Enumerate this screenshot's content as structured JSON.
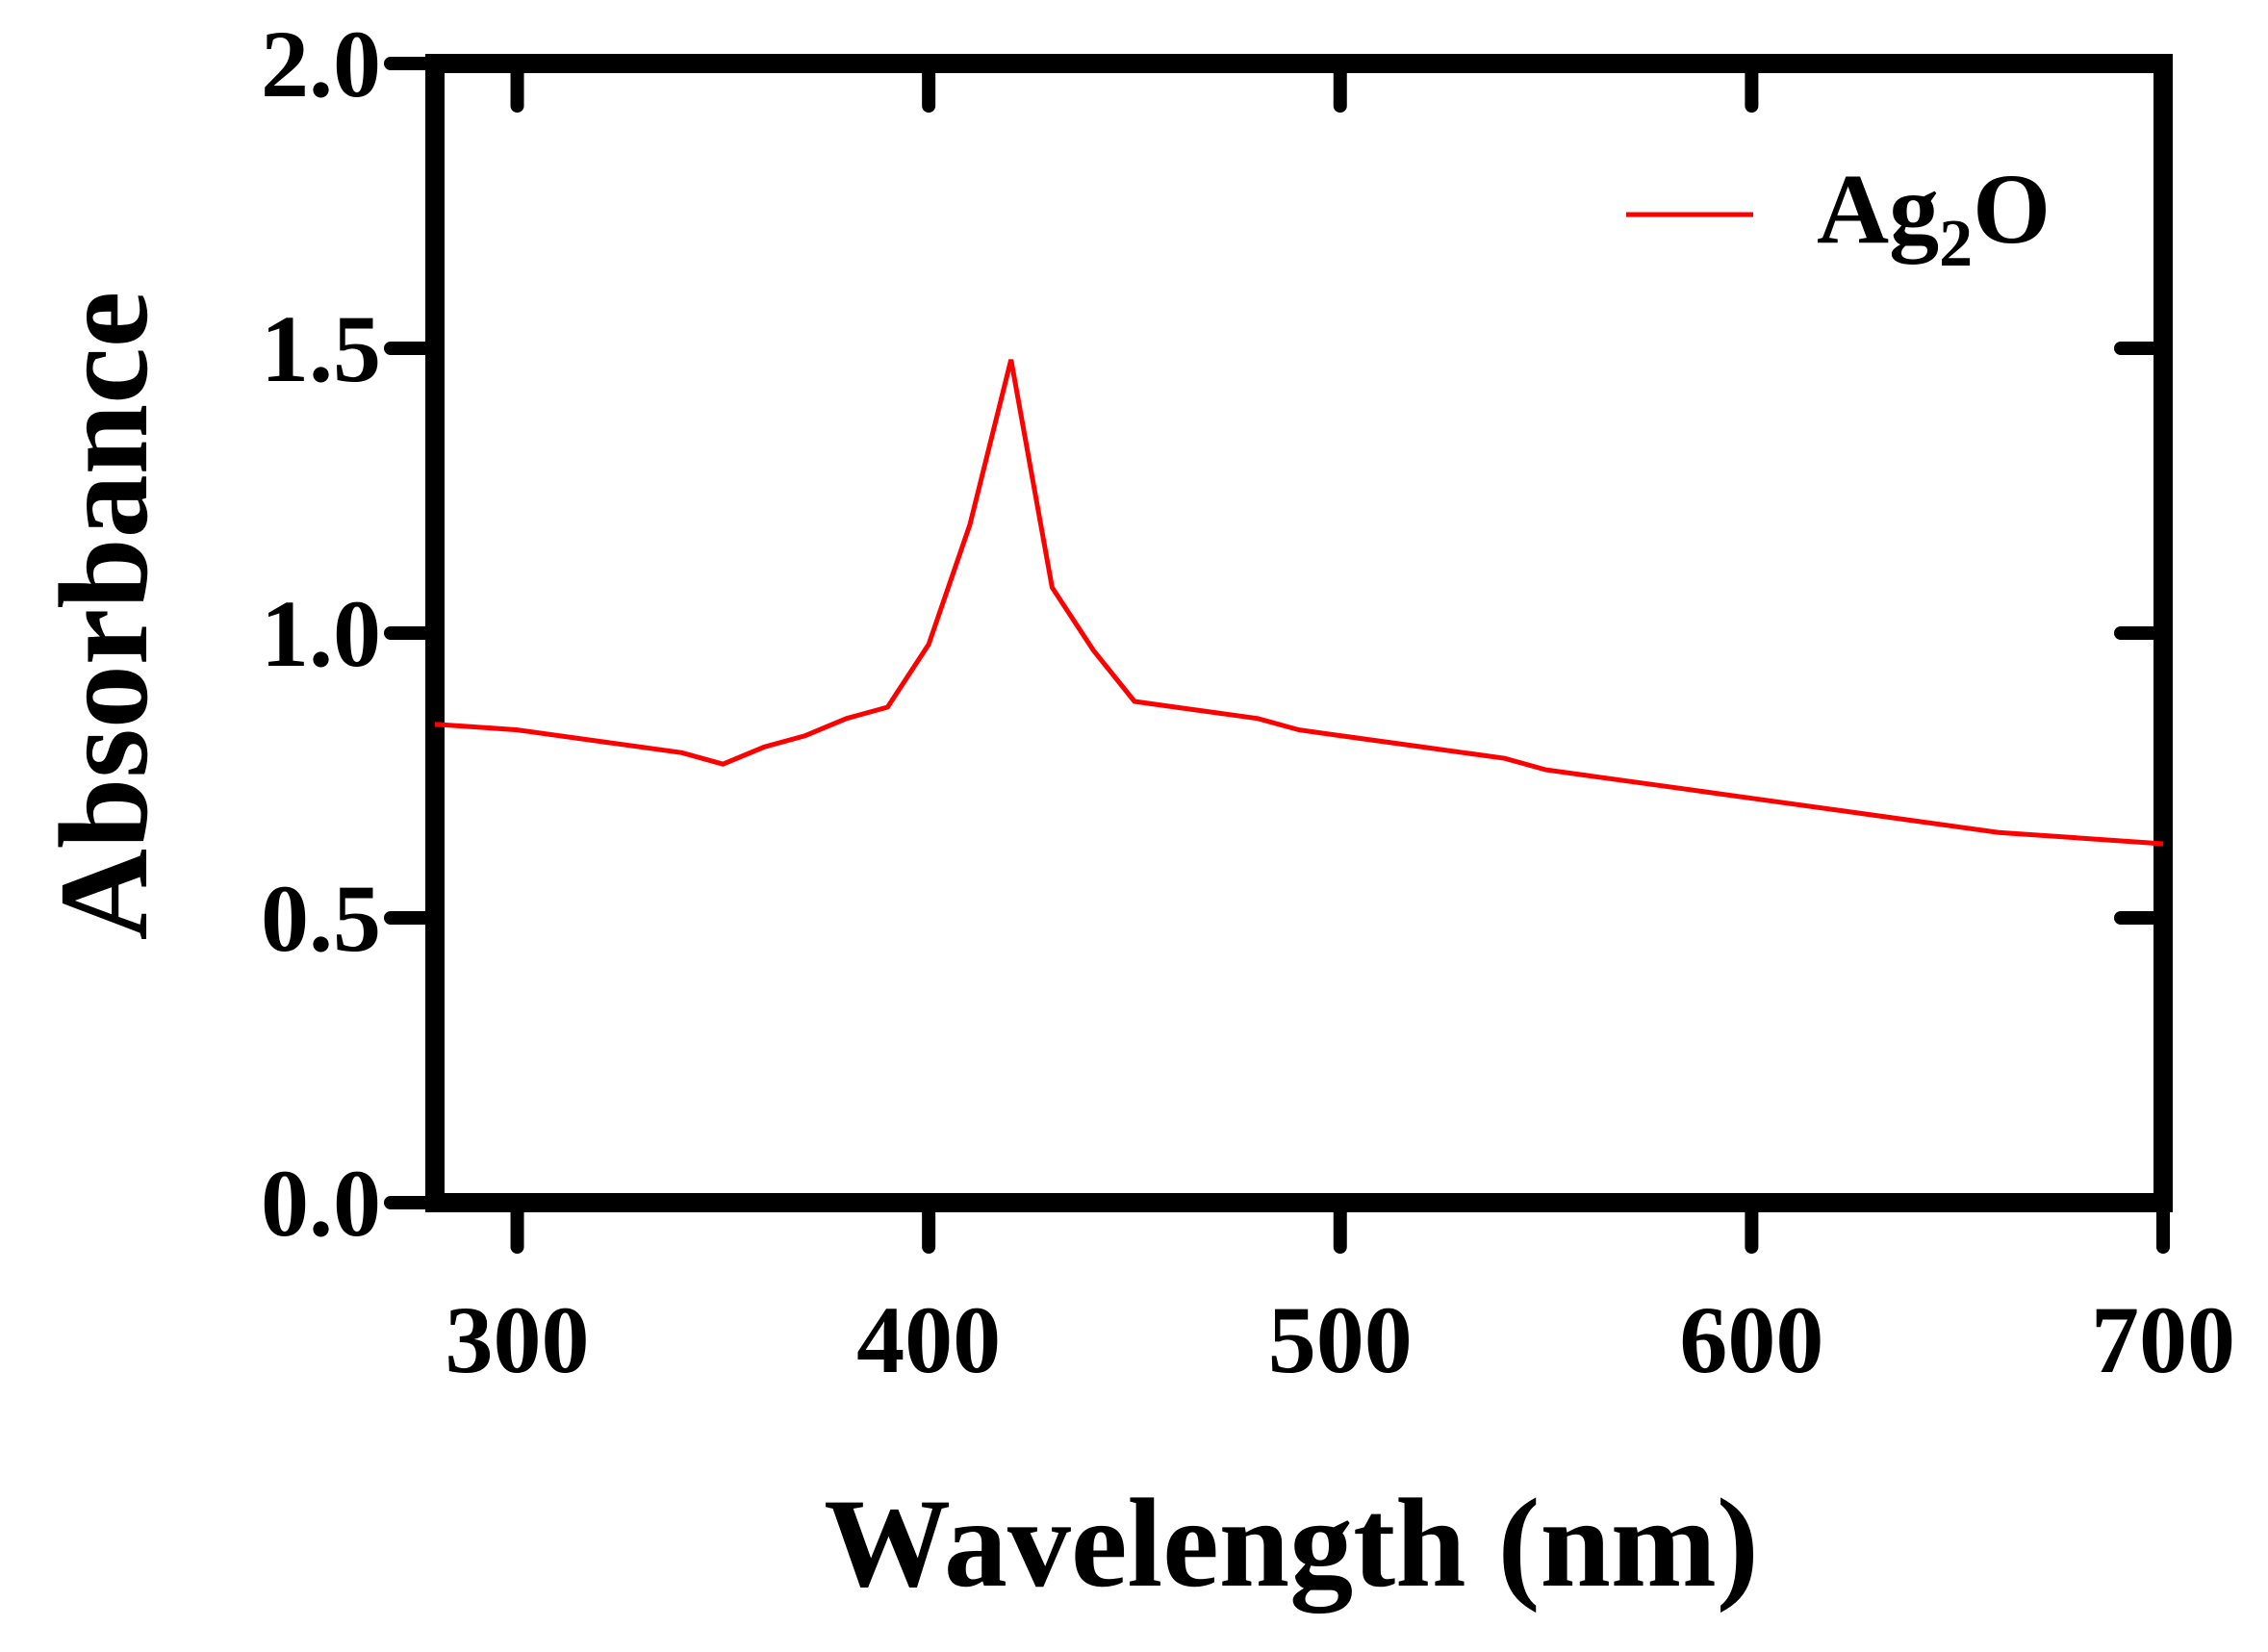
{
  "chart_data": {
    "type": "line",
    "title": "",
    "xlabel": "Wavelength (nm)",
    "ylabel": "Absorbance",
    "xlim": [
      280,
      700
    ],
    "ylim": [
      0.0,
      2.0
    ],
    "xticks": [
      300,
      400,
      500,
      600,
      700
    ],
    "yticks": [
      0.0,
      0.5,
      1.0,
      1.5,
      2.0
    ],
    "xtick_labels": [
      "300",
      "400",
      "500",
      "600",
      "700"
    ],
    "ytick_labels": [
      "0.0",
      "0.5",
      "1.0",
      "1.5",
      "2.0"
    ],
    "grid": false,
    "legend_position": "top-right",
    "series": [
      {
        "name": "Ag2O",
        "label_base": "Ag",
        "label_sub": "2",
        "label_tail": "O",
        "color": "#ff0000",
        "x": [
          280,
          300,
          320,
          340,
          350,
          360,
          370,
          380,
          390,
          400,
          410,
          420,
          430,
          440,
          450,
          460,
          470,
          480,
          490,
          500,
          520,
          540,
          550,
          560,
          580,
          600,
          620,
          640,
          650,
          660,
          680,
          700
        ],
        "y": [
          0.84,
          0.83,
          0.81,
          0.79,
          0.77,
          0.8,
          0.82,
          0.85,
          0.87,
          0.98,
          1.19,
          1.48,
          1.08,
          0.97,
          0.88,
          0.87,
          0.86,
          0.85,
          0.83,
          0.82,
          0.8,
          0.78,
          0.76,
          0.75,
          0.73,
          0.71,
          0.69,
          0.67,
          0.66,
          0.65,
          0.64,
          0.63
        ]
      }
    ]
  }
}
